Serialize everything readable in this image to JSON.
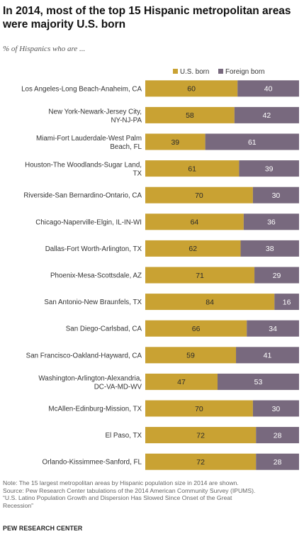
{
  "title": "In 2014, most of the top 15 Hispanic metropolitan areas were majority U.S. born",
  "subtitle": "% of Hispanics who are ...",
  "notes": [
    "Note: The 15 largest metropolitan areas by Hispanic population size in 2014 are shown.",
    "Source: Pew Research Center tabulations of the 2014 American Community Survey (IPUMS).",
    "“U.S. Latino Population Growth and Dispersion Has Slowed Since Onset of the Great",
    "Recession”"
  ],
  "brand": "PEW RESEARCH CENTER",
  "colors": {
    "us_born": "#c9a233",
    "foreign_born": "#78697e",
    "label_text": "#333333"
  },
  "chart_data": {
    "type": "bar",
    "orientation": "horizontal",
    "stacked": true,
    "legend_position": "top-right",
    "xlim": [
      0,
      100
    ],
    "categories": [
      [
        "Los Angeles-Long Beach-Anaheim, CA"
      ],
      [
        "New York-Newark-Jersey City,",
        "NY-NJ-PA"
      ],
      [
        "Miami-Fort Lauderdale-West Palm",
        "Beach, FL"
      ],
      [
        "Houston-The Woodlands-Sugar Land,",
        "TX"
      ],
      [
        "Riverside-San Bernardino-Ontario, CA"
      ],
      [
        "Chicago-Naperville-Elgin, IL-IN-WI"
      ],
      [
        "Dallas-Fort Worth-Arlington, TX"
      ],
      [
        "Phoenix-Mesa-Scottsdale, AZ"
      ],
      [
        "San Antonio-New Braunfels, TX"
      ],
      [
        "San Diego-Carlsbad, CA"
      ],
      [
        "San Francisco-Oakland-Hayward, CA"
      ],
      [
        "Washington-Arlington-Alexandria,",
        "DC-VA-MD-WV"
      ],
      [
        "McAllen-Edinburg-Mission, TX"
      ],
      [
        "El Paso, TX"
      ],
      [
        "Orlando-Kissimmee-Sanford, FL"
      ]
    ],
    "series": [
      {
        "name": "U.S. born",
        "values": [
          60,
          58,
          39,
          61,
          70,
          64,
          62,
          71,
          84,
          66,
          59,
          47,
          70,
          72,
          72
        ]
      },
      {
        "name": "Foreign born",
        "values": [
          40,
          42,
          61,
          39,
          30,
          36,
          38,
          29,
          16,
          34,
          41,
          53,
          30,
          28,
          28
        ]
      }
    ]
  }
}
